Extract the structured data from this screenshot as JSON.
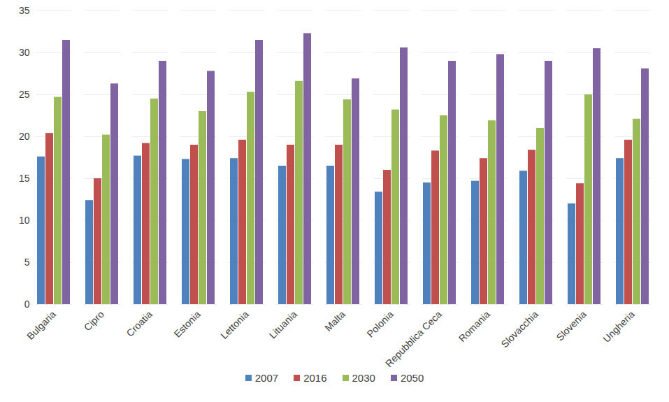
{
  "chart_data": {
    "type": "bar",
    "categories": [
      "Bulgaria",
      "Cipro",
      "Croatia",
      "Estonia",
      "Lettonia",
      "Lituania",
      "Malta",
      "Polonia",
      "Repubblica Ceca",
      "Romania",
      "Slovacchia",
      "Slovenia",
      "Ungheria"
    ],
    "series": [
      {
        "name": "2007",
        "color": "#4f81bd",
        "values": [
          17.6,
          12.4,
          17.7,
          17.3,
          17.4,
          16.5,
          16.5,
          13.4,
          14.5,
          14.7,
          15.9,
          12.0,
          17.4
        ]
      },
      {
        "name": "2016",
        "color": "#c0504d",
        "values": [
          20.4,
          15.0,
          19.2,
          19.0,
          19.6,
          19.0,
          19.0,
          16.0,
          18.3,
          17.4,
          18.4,
          14.4,
          19.6
        ]
      },
      {
        "name": "2030",
        "color": "#9bbb59",
        "values": [
          24.7,
          20.2,
          24.5,
          23.0,
          25.3,
          26.6,
          24.4,
          23.2,
          22.5,
          21.9,
          21.0,
          25.0,
          22.1
        ]
      },
      {
        "name": "2050",
        "color": "#8064a2",
        "values": [
          31.5,
          26.3,
          29.0,
          27.8,
          31.5,
          32.3,
          26.9,
          30.6,
          29.0,
          29.8,
          29.0,
          30.5,
          28.1
        ]
      }
    ],
    "ylim": [
      0,
      35
    ],
    "yticks": [
      0,
      5,
      10,
      15,
      20,
      25,
      30,
      35
    ],
    "grid": true,
    "legend": "bottom"
  }
}
